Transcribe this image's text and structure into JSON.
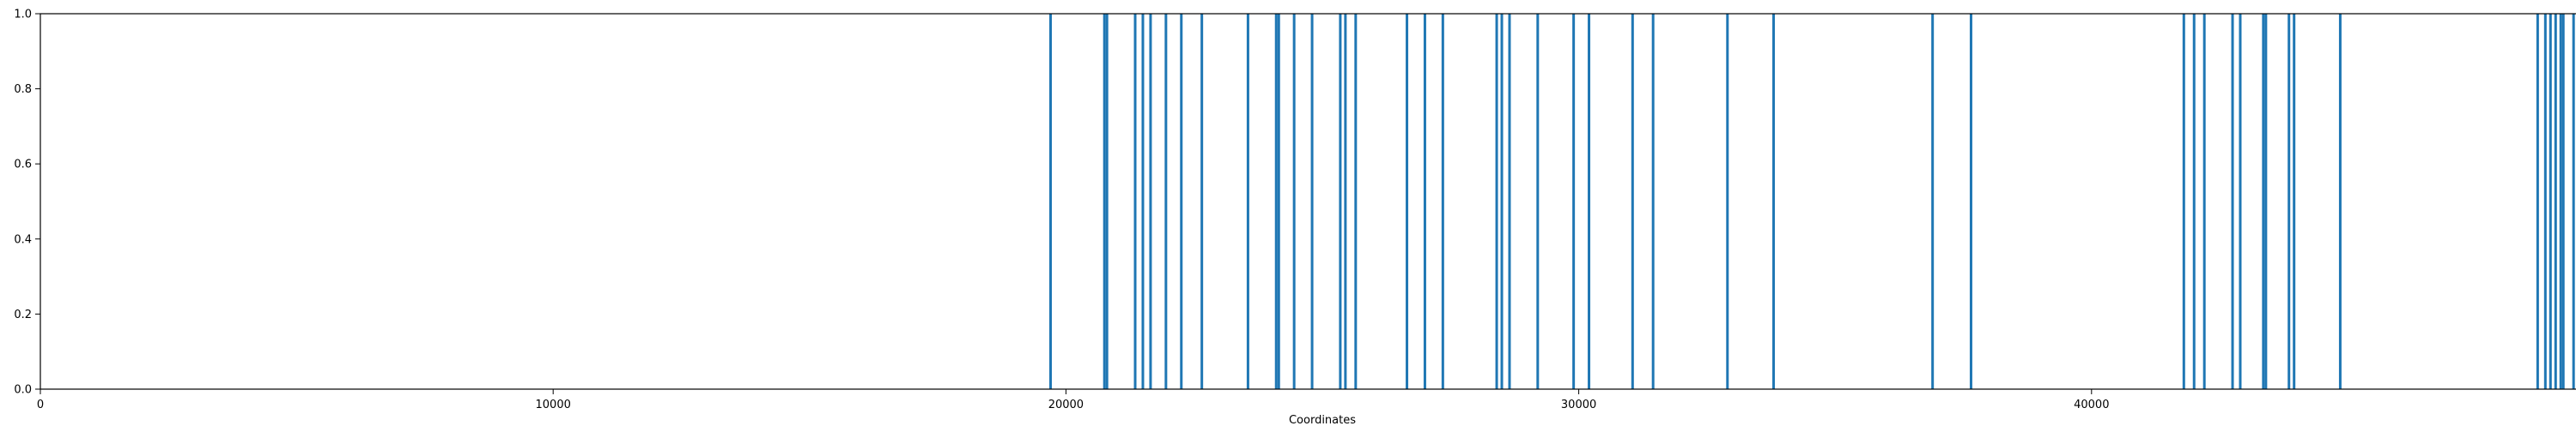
{
  "chart_data": {
    "type": "bar",
    "title": "",
    "xlabel": "Coordinates",
    "ylabel": "",
    "xlim": [
      0,
      50000
    ],
    "ylim": [
      0,
      1.0
    ],
    "grid": false,
    "legend": "none",
    "bar_color": "#1f77b4",
    "x_ticks": [
      0,
      10000,
      20000,
      30000,
      40000,
      50000
    ],
    "x_tick_labels": [
      "0",
      "10000",
      "20000",
      "30000",
      "40000",
      "50000"
    ],
    "y_ticks": [
      0.0,
      0.2,
      0.4,
      0.6,
      0.8,
      1.0
    ],
    "y_tick_labels": [
      "0.0",
      "0.2",
      "0.4",
      "0.6",
      "0.8",
      "1.0"
    ],
    "x": [
      19700,
      20750,
      20800,
      21350,
      21500,
      21650,
      21950,
      22250,
      22650,
      23550,
      24100,
      24150,
      24450,
      24800,
      25350,
      25450,
      25650,
      26650,
      27000,
      27350,
      28400,
      28500,
      28650,
      29200,
      29900,
      30200,
      31050,
      31450,
      32900,
      33800,
      36900,
      37650,
      41800,
      42000,
      42200,
      42750,
      42900,
      43350,
      43400,
      43850,
      43950,
      44850,
      48700,
      48850,
      48950,
      49050,
      49150,
      49200,
      49400,
      49950
    ],
    "values": [
      1,
      1,
      1,
      1,
      1,
      1,
      1,
      1,
      1,
      1,
      1,
      1,
      1,
      1,
      1,
      1,
      1,
      1,
      1,
      1,
      1,
      1,
      1,
      1,
      1,
      1,
      1,
      1,
      1,
      1,
      1,
      1,
      1,
      1,
      1,
      1,
      1,
      1,
      1,
      1,
      1,
      1,
      1,
      1,
      1,
      1,
      1,
      1,
      1,
      1
    ]
  }
}
